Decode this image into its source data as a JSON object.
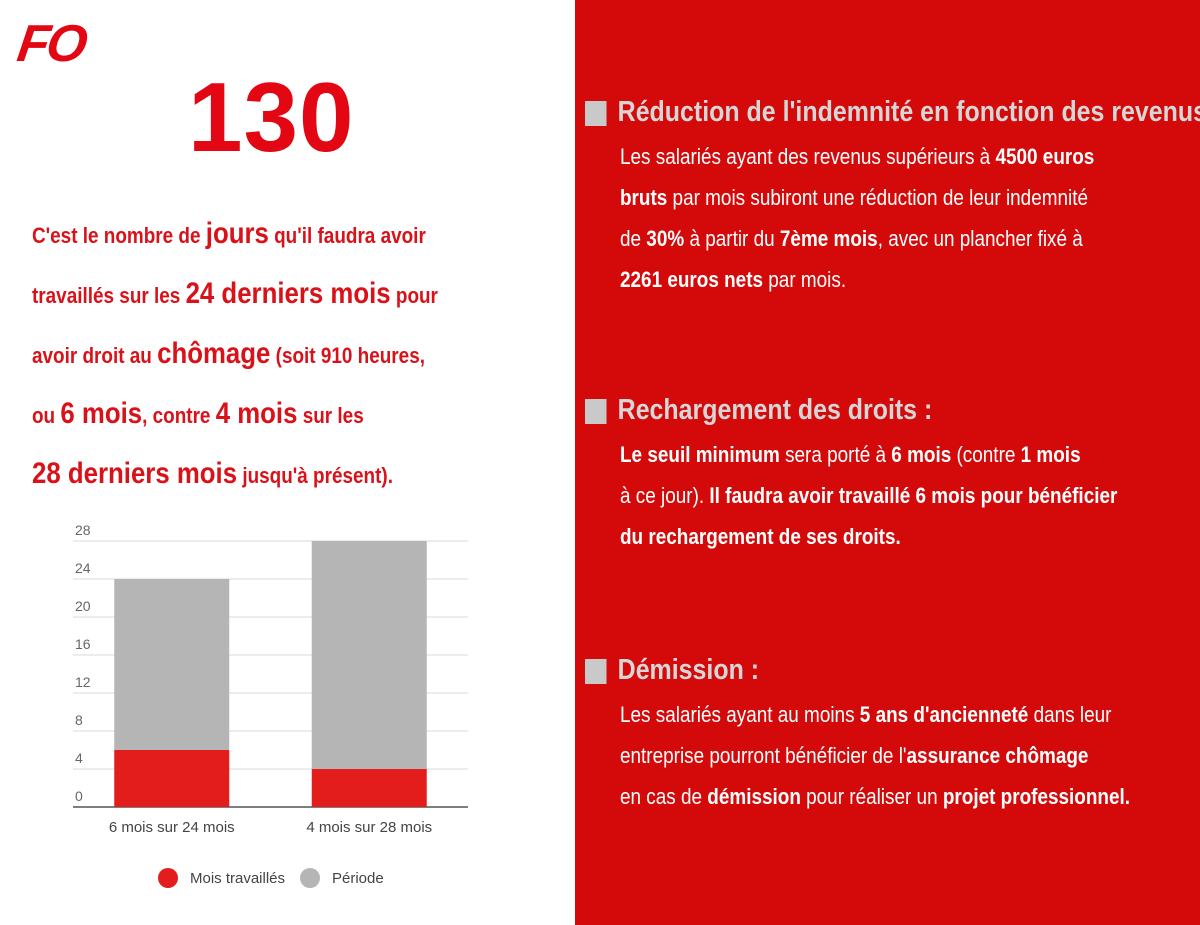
{
  "logo": "FO",
  "headline_number": "130",
  "intro": {
    "l1_a": "C'est le nombre de ",
    "l1_b": "jours",
    "l1_c": " qu'il faudra avoir",
    "l2_a": "travaillés sur les ",
    "l2_b": "24 derniers mois",
    "l2_c": " pour",
    "l3_a": "avoir droit au ",
    "l3_b": "chômage",
    "l3_c": " (soit 910 heures,",
    "l4_a": "ou ",
    "l4_b": "6 mois",
    "l4_c": ", contre ",
    "l4_d": "4 mois",
    "l4_e": " sur les",
    "l5_a": "28 derniers mois",
    "l5_b": " jusqu'à présent)."
  },
  "sections": [
    {
      "title": "Réduction de l'indemnité en fonction des revenus :",
      "l1_a": "Les salariés ayant des revenus supérieurs à ",
      "l1_b": "4500 euros",
      "l2_a": "bruts",
      "l2_b": " par mois subiront une réduction de leur indemnité",
      "l3_a": "de ",
      "l3_b": "30%",
      "l3_c": " à partir du ",
      "l3_d": "7ème mois",
      "l3_e": ", avec un plancher fixé à",
      "l4_a": "2261 euros nets",
      "l4_b": " par mois."
    },
    {
      "title": "Rechargement des droits :",
      "l1_a": "Le seuil minimum",
      "l1_b": " sera porté à ",
      "l1_c": "6 mois",
      "l1_d": " (contre ",
      "l1_e": "1 mois",
      "l2_a": "à ce jour). ",
      "l2_b": "Il faudra avoir travaillé 6 mois pour bénéficier",
      "l3_a": "du rechargement de ses droits."
    },
    {
      "title": "Démission :",
      "l1_a": "Les salariés ayant au moins ",
      "l1_b": "5 ans d'ancienneté",
      "l1_c": " dans leur",
      "l2_a": "entreprise pourront bénéficier de l'",
      "l2_b": "assurance chômage",
      "l3_a": "en cas de ",
      "l3_b": "démission",
      "l3_c": " pour réaliser un ",
      "l3_d": "projet professionnel."
    }
  ],
  "colors": {
    "red": "#e31c1c",
    "grey": "#b5b5b5",
    "panel": "#d40a0a"
  },
  "chart_data": {
    "type": "bar",
    "stacked": true,
    "categories": [
      "6 mois sur 24 mois",
      "4 mois sur 28 mois"
    ],
    "series": [
      {
        "name": "Mois travaillés",
        "values": [
          6,
          4
        ],
        "color": "#e31c1c"
      },
      {
        "name": "Période",
        "values": [
          18,
          24
        ],
        "color": "#b5b5b5"
      }
    ],
    "yticks": [
      "0",
      "4",
      "8",
      "12",
      "16",
      "20",
      "24",
      "28"
    ],
    "ylim": [
      0,
      28
    ],
    "grid": true,
    "legend": "bottom"
  }
}
